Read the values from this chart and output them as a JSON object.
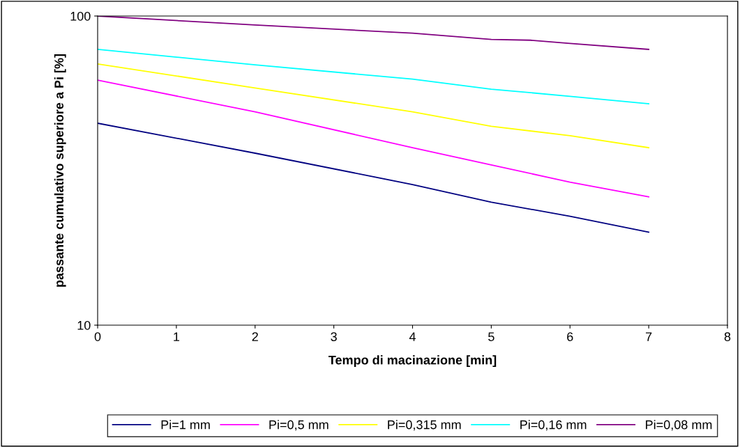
{
  "chart_data": {
    "type": "line",
    "xlabel": "Tempo di macinazione [min]",
    "ylabel": "passante cumulativo superiore a Pi [%]",
    "log": "y",
    "xlim": [
      0,
      8
    ],
    "xticks": [
      0,
      1,
      2,
      3,
      4,
      5,
      6,
      7,
      8
    ],
    "ylim": [
      10,
      100
    ],
    "yticks": [
      10,
      100
    ],
    "grid": false,
    "legend": "bottom",
    "marker": "none",
    "line_style": "solid",
    "series": [
      {
        "name": "Pi=1 mm",
        "color": "#000080",
        "x": [
          0,
          2,
          4,
          5,
          6,
          7
        ],
        "values": [
          45,
          36,
          28.5,
          25,
          22.5,
          20
        ]
      },
      {
        "name": "Pi=0,5 mm",
        "color": "#ff00ff",
        "x": [
          0,
          2,
          4,
          5,
          6,
          7
        ],
        "values": [
          62,
          49,
          37.5,
          33,
          29,
          26
        ]
      },
      {
        "name": "Pi=0,315 mm",
        "color": "#ffff00",
        "x": [
          0,
          2,
          4,
          5,
          6,
          7
        ],
        "values": [
          70,
          58.5,
          49,
          44,
          41,
          37.5
        ]
      },
      {
        "name": "Pi=0,16 mm",
        "color": "#00ffff",
        "x": [
          0,
          2,
          4,
          5,
          6,
          7
        ],
        "values": [
          78,
          69.5,
          62.5,
          58,
          55,
          52
        ]
      },
      {
        "name": "Pi=0,08 mm",
        "color": "#800080",
        "x": [
          0,
          2,
          4,
          5,
          5.5,
          6,
          7
        ],
        "values": [
          100,
          93.5,
          88,
          84,
          83.5,
          81.5,
          78
        ]
      }
    ]
  }
}
